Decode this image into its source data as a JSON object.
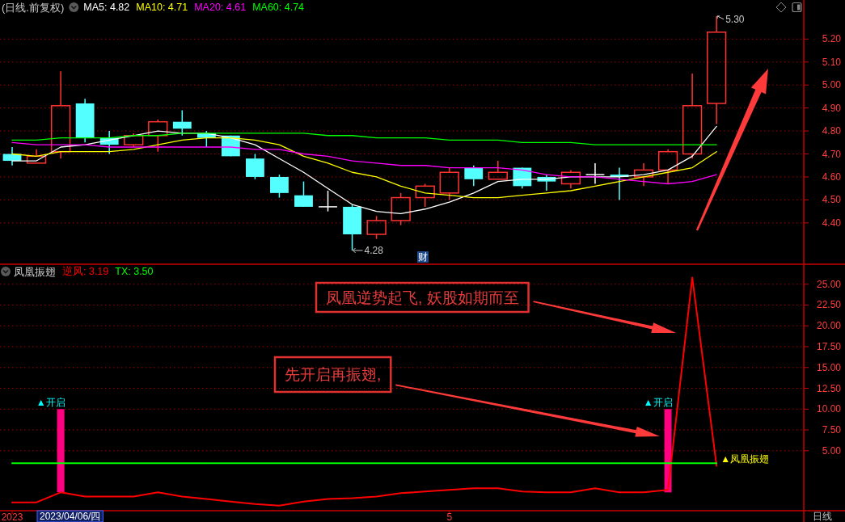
{
  "chart_data": [
    {
      "type": "candlestick",
      "title": "(日线.前复权)",
      "categories": [
        null,
        null,
        null,
        null,
        null,
        null,
        null,
        null,
        null,
        null,
        null,
        null,
        null,
        null,
        null,
        null,
        null,
        null,
        null,
        null,
        null,
        null,
        null,
        null,
        null,
        null,
        null,
        null,
        null,
        null
      ],
      "ohlc": [
        [
          4.7,
          4.73,
          4.65,
          4.67
        ],
        [
          4.66,
          4.72,
          4.66,
          4.69
        ],
        [
          4.71,
          5.06,
          4.68,
          4.91
        ],
        [
          4.92,
          4.94,
          4.75,
          4.77
        ],
        [
          4.77,
          4.8,
          4.7,
          4.74
        ],
        [
          4.74,
          4.79,
          4.73,
          4.78
        ],
        [
          4.78,
          4.85,
          4.71,
          4.84
        ],
        [
          4.84,
          4.89,
          4.78,
          4.81
        ],
        [
          4.79,
          4.8,
          4.73,
          4.77
        ],
        [
          4.78,
          4.78,
          4.69,
          4.69
        ],
        [
          4.68,
          4.7,
          4.59,
          4.6
        ],
        [
          4.6,
          4.61,
          4.51,
          4.53
        ],
        [
          4.52,
          4.58,
          4.47,
          4.47
        ],
        [
          4.47,
          4.54,
          4.45,
          4.47
        ],
        [
          4.47,
          4.48,
          4.28,
          4.35
        ],
        [
          4.35,
          4.43,
          4.33,
          4.41
        ],
        [
          4.41,
          4.53,
          4.39,
          4.51
        ],
        [
          4.51,
          4.57,
          4.47,
          4.56
        ],
        [
          4.53,
          4.64,
          4.5,
          4.62
        ],
        [
          4.64,
          4.65,
          4.56,
          4.59
        ],
        [
          4.59,
          4.67,
          4.59,
          4.62
        ],
        [
          4.64,
          4.64,
          4.55,
          4.56
        ],
        [
          4.6,
          4.61,
          4.54,
          4.58
        ],
        [
          4.57,
          4.63,
          4.55,
          4.62
        ],
        [
          4.61,
          4.66,
          4.57,
          4.61
        ],
        [
          4.61,
          4.64,
          4.5,
          4.6
        ],
        [
          4.6,
          4.66,
          4.56,
          4.63
        ],
        [
          4.63,
          4.72,
          4.57,
          4.71
        ],
        [
          4.7,
          5.05,
          4.68,
          4.91
        ],
        [
          4.92,
          5.3,
          4.83,
          5.23
        ]
      ],
      "colors": [
        "#54ffff",
        "#ff3232",
        "#ff3232",
        "#54ffff",
        "#54ffff",
        "#ff3232",
        "#ff3232",
        "#54ffff",
        "#54ffff",
        "#54ffff",
        "#54ffff",
        "#54ffff",
        "#54ffff",
        "#ffffff",
        "#54ffff",
        "#ff3232",
        "#ff3232",
        "#ff3232",
        "#ff3232",
        "#54ffff",
        "#ff3232",
        "#54ffff",
        "#54ffff",
        "#ff3232",
        "#ffffff",
        "#54ffff",
        "#ff3232",
        "#ff3232",
        "#ff3232",
        "#ff3232"
      ],
      "series": [
        {
          "name": "MA5: 4.82",
          "type": "line",
          "color": "#ffffff",
          "values": [
            4.67,
            4.67,
            4.73,
            4.74,
            4.76,
            4.78,
            4.8,
            4.79,
            4.79,
            4.77,
            4.74,
            4.68,
            4.62,
            4.55,
            4.48,
            4.45,
            4.44,
            4.46,
            4.49,
            4.53,
            4.58,
            4.59,
            4.59,
            4.6,
            4.6,
            4.6,
            4.61,
            4.63,
            4.69,
            4.82
          ]
        },
        {
          "name": "MA10: 4.71",
          "type": "line",
          "color": "#ffff00",
          "values": [
            4.7,
            4.69,
            4.71,
            4.71,
            4.71,
            4.72,
            4.74,
            4.76,
            4.77,
            4.77,
            4.76,
            4.74,
            4.69,
            4.66,
            4.62,
            4.6,
            4.56,
            4.53,
            4.52,
            4.51,
            4.51,
            4.52,
            4.53,
            4.54,
            4.56,
            4.58,
            4.6,
            4.62,
            4.64,
            4.71
          ]
        },
        {
          "name": "MA20: 4.61",
          "type": "line",
          "color": "#ff00ff",
          "values": [
            4.75,
            4.74,
            4.74,
            4.74,
            4.73,
            4.73,
            4.73,
            4.73,
            4.73,
            4.73,
            4.72,
            4.72,
            4.7,
            4.69,
            4.67,
            4.66,
            4.65,
            4.65,
            4.64,
            4.64,
            4.64,
            4.63,
            4.61,
            4.6,
            4.6,
            4.59,
            4.58,
            4.57,
            4.58,
            4.61
          ]
        },
        {
          "name": "MA60: 4.74",
          "type": "line",
          "color": "#00ff00",
          "values": [
            4.76,
            4.76,
            4.77,
            4.77,
            4.77,
            4.78,
            4.78,
            4.79,
            4.79,
            4.79,
            4.79,
            4.79,
            4.79,
            4.78,
            4.78,
            4.77,
            4.77,
            4.77,
            4.76,
            4.76,
            4.76,
            4.75,
            4.75,
            4.75,
            4.74,
            4.74,
            4.74,
            4.74,
            4.74,
            4.74
          ]
        }
      ],
      "ylim": [
        4.22,
        5.37
      ],
      "yticks": [
        {
          "value": 4.4,
          "label": "4.40"
        },
        {
          "value": 4.5,
          "label": "4.50"
        },
        {
          "value": 4.6,
          "label": "4.60"
        },
        {
          "value": 4.7,
          "label": "4.70"
        },
        {
          "value": 4.8,
          "label": "4.80"
        },
        {
          "value": 4.9,
          "label": "4.90"
        },
        {
          "value": 5.0,
          "label": "5.00"
        },
        {
          "value": 5.1,
          "label": "5.10"
        },
        {
          "value": 5.2,
          "label": "5.20"
        }
      ],
      "grid": "y",
      "annotations": [
        "财",
        "5.30",
        "4.28"
      ]
    },
    {
      "type": "line",
      "title": "凤凰振翅",
      "categories": [
        "2023",
        null,
        null,
        null,
        null,
        null,
        null,
        null,
        null,
        null,
        null,
        null,
        null,
        null,
        null,
        null,
        null,
        null,
        "5",
        null,
        null,
        null,
        null,
        null,
        null,
        null,
        null,
        null,
        null,
        null
      ],
      "series": [
        {
          "name": "逆风: 3.19",
          "color": "#ff0000",
          "values": [
            -1.2,
            -1.2,
            0.0,
            -0.5,
            -0.5,
            -0.5,
            0.0,
            -0.5,
            -0.8,
            -1.1,
            -1.4,
            -1.6,
            -1.1,
            -0.8,
            -0.7,
            -0.5,
            -0.1,
            0.1,
            0.3,
            0.5,
            0.5,
            0.1,
            0.0,
            0.0,
            0.5,
            0.0,
            0.0,
            0.3,
            25.8,
            3.19
          ],
          "value_labels": [
            null,
            null,
            null,
            null,
            null,
            null,
            null,
            null,
            null,
            null,
            null,
            null,
            null,
            null,
            null,
            null,
            null,
            null,
            null,
            null,
            null,
            null,
            null,
            null,
            null,
            null,
            null,
            null,
            null,
            "▲凤凰振翅"
          ]
        },
        {
          "name": "TX: 3.50",
          "color": "#00ff00",
          "values": [
            3.5,
            3.5,
            3.5,
            3.5,
            3.5,
            3.5,
            3.5,
            3.5,
            3.5,
            3.5,
            3.5,
            3.5,
            3.5,
            3.5,
            3.5,
            3.5,
            3.5,
            3.5,
            3.5,
            3.5,
            3.5,
            3.5,
            3.5,
            3.5,
            3.5,
            3.5,
            3.5,
            3.5,
            3.5,
            3.5
          ]
        },
        {
          "type": "bar",
          "color": "#ff0080",
          "values": [
            null,
            null,
            10,
            null,
            null,
            null,
            null,
            null,
            null,
            null,
            null,
            null,
            null,
            null,
            null,
            null,
            null,
            null,
            null,
            null,
            null,
            null,
            null,
            null,
            null,
            null,
            null,
            10,
            null,
            null
          ],
          "value_labels": [
            null,
            null,
            "▲开启",
            null,
            null,
            null,
            null,
            null,
            null,
            null,
            null,
            null,
            null,
            null,
            null,
            null,
            null,
            null,
            null,
            null,
            null,
            null,
            null,
            null,
            null,
            null,
            null,
            "▲开启",
            null,
            null
          ]
        }
      ],
      "ylim": [
        -2.2,
        27.4
      ],
      "yticks": [
        {
          "value": 5,
          "label": "5.00"
        },
        {
          "value": 7.5,
          "label": "7.50"
        },
        {
          "value": 10,
          "label": "10.00"
        },
        {
          "value": 12.5,
          "label": "12.50"
        },
        {
          "value": 15,
          "label": "15.00"
        },
        {
          "value": 17.5,
          "label": "17.50"
        },
        {
          "value": 20,
          "label": "20.00"
        },
        {
          "value": 22.5,
          "label": "22.50"
        },
        {
          "value": 25,
          "label": "25.00"
        }
      ],
      "grid": "y",
      "annotations": [
        "凤凰逆势起飞, 妖股如期而至",
        "先开启再振翅,",
        "2023/04/06/四",
        "日线"
      ]
    }
  ]
}
